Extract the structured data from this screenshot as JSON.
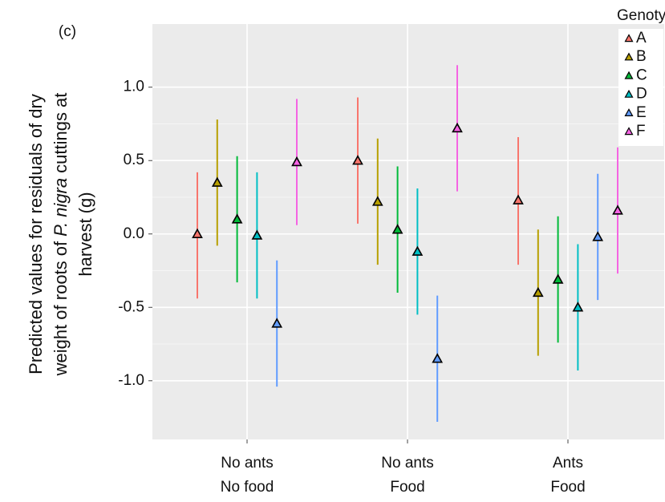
{
  "chart_data": {
    "type": "pointrange",
    "panel_label": "(c)",
    "y_label": {
      "line1": "Predicted values for residuals of dry",
      "line2_before": "weight of roots of",
      "line2_italic": "P. nigra",
      "line2_after": "cuttings at",
      "line3": "harvest (g)"
    },
    "categories": [
      [
        "No ants",
        "No food"
      ],
      [
        "No ants",
        "Food"
      ],
      [
        "Ants",
        "Food"
      ]
    ],
    "ylim": [
      -1.4,
      1.43
    ],
    "yticks": [
      {
        "value": -1,
        "label": "-1.0"
      },
      -0.5,
      {
        "value": 0,
        "label": "0.0"
      },
      0.5,
      {
        "value": 1,
        "label": "1.0"
      }
    ],
    "grid": true,
    "legend": "top-right",
    "legend_title": "Genotype",
    "series": [
      {
        "name": "A",
        "color": "#F8766D",
        "values": [
          0.0,
          0.5,
          0.23
        ],
        "lower": [
          -0.44,
          0.07,
          -0.21
        ],
        "upper": [
          0.42,
          0.93,
          0.66
        ]
      },
      {
        "name": "B",
        "color": "#B79F00",
        "values": [
          0.35,
          0.22,
          -0.4
        ],
        "lower": [
          -0.08,
          -0.21,
          -0.83
        ],
        "upper": [
          0.78,
          0.65,
          0.03
        ]
      },
      {
        "name": "C",
        "color": "#00BA38",
        "values": [
          0.1,
          0.03,
          -0.31
        ],
        "lower": [
          -0.33,
          -0.4,
          -0.74
        ],
        "upper": [
          0.53,
          0.46,
          0.12
        ]
      },
      {
        "name": "D",
        "color": "#00BFC4",
        "values": [
          -0.01,
          -0.12,
          -0.5
        ],
        "lower": [
          -0.44,
          -0.55,
          -0.93
        ],
        "upper": [
          0.42,
          0.31,
          -0.07
        ]
      },
      {
        "name": "E",
        "color": "#619CFF",
        "values": [
          -0.61,
          -0.85,
          -0.02
        ],
        "lower": [
          -1.04,
          -1.28,
          -0.45
        ],
        "upper": [
          -0.18,
          -0.42,
          0.41
        ]
      },
      {
        "name": "F",
        "color": "#F564E3",
        "values": [
          0.49,
          0.72,
          0.16
        ],
        "lower": [
          0.06,
          0.29,
          -0.27
        ],
        "upper": [
          0.92,
          1.15,
          0.59
        ]
      }
    ]
  }
}
